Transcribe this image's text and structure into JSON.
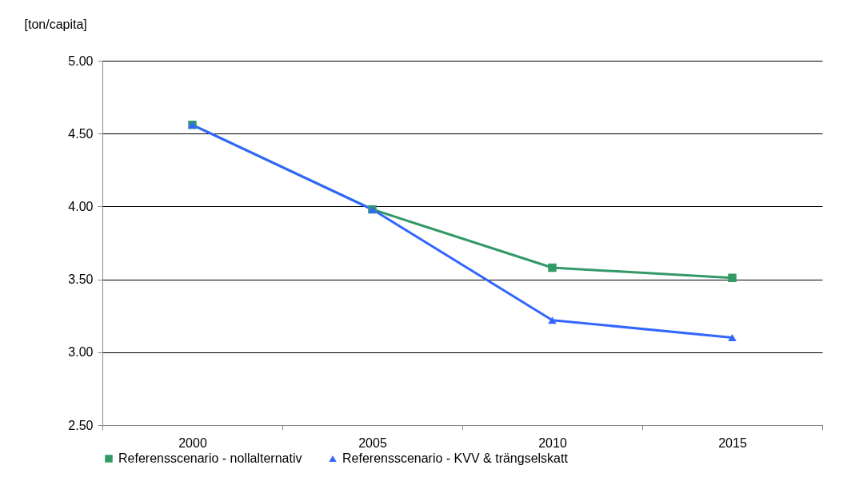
{
  "chart_data": {
    "type": "line",
    "ylabel": "[ton/capita]",
    "categories": [
      "2000",
      "2005",
      "2010",
      "2015"
    ],
    "series": [
      {
        "name": "Referensscenario - nollalternativ",
        "color": "#339966",
        "marker": "square",
        "values": [
          4.56,
          3.98,
          3.58,
          3.51
        ]
      },
      {
        "name": "Referensscenario - KVV & trängselskatt",
        "color": "#3366ff",
        "marker": "triangle",
        "values": [
          4.56,
          3.98,
          3.22,
          3.1
        ]
      }
    ],
    "ylim": [
      2.5,
      5.0
    ],
    "yticks": [
      {
        "value": 2.5,
        "label": "2.50"
      },
      {
        "value": 3.0,
        "label": "3.00"
      },
      {
        "value": 3.5,
        "label": "3.50"
      },
      {
        "value": 4.0,
        "label": "4.00"
      },
      {
        "value": 4.5,
        "label": "4.50"
      },
      {
        "value": 5.0,
        "label": "5.00"
      }
    ],
    "grid": "y",
    "legend": "bottom"
  }
}
